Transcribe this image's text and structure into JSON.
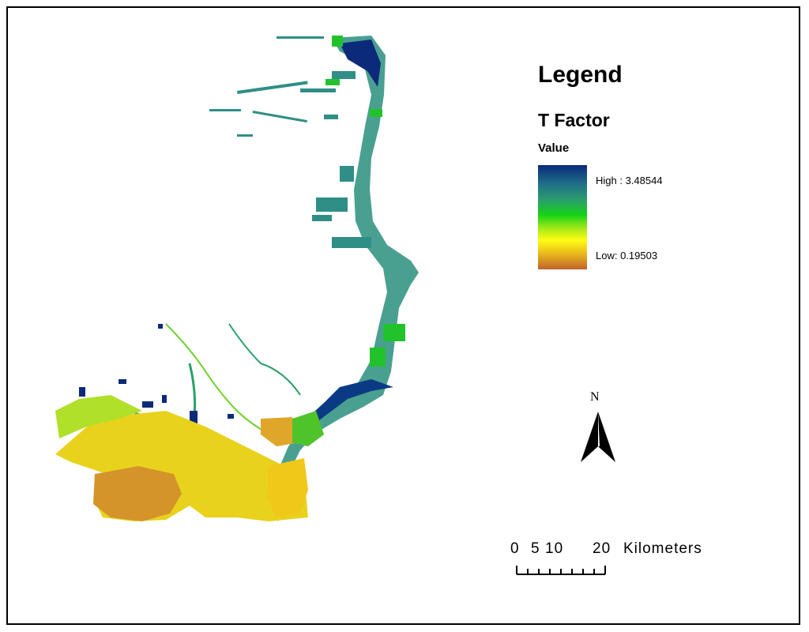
{
  "legend": {
    "title": "Legend",
    "layer_name": "T Factor",
    "field_name": "Value",
    "high_label": "High : 3.48544",
    "low_label": "Low: 0.19503",
    "ramp_colors": [
      "#0b2a7a",
      "#1f6f8a",
      "#2aa06a",
      "#15d415",
      "#9ee816",
      "#fffc14",
      "#e6b41c",
      "#c0622c"
    ]
  },
  "north_arrow": {
    "letter": "N",
    "icon": "north-arrow-icon"
  },
  "scale_bar": {
    "ticks": [
      "0",
      "5",
      "10",
      "20"
    ],
    "units": "Kilometers"
  },
  "map": {
    "feature_colors": {
      "high": "#0b2a7a",
      "mid_high": "#1f6f8a",
      "mid": "#2aa06a",
      "green": "#22c22c",
      "light_green": "#9fe82a",
      "yellow": "#f0d81a",
      "orange": "#d89a22",
      "low": "#c0622c"
    }
  }
}
